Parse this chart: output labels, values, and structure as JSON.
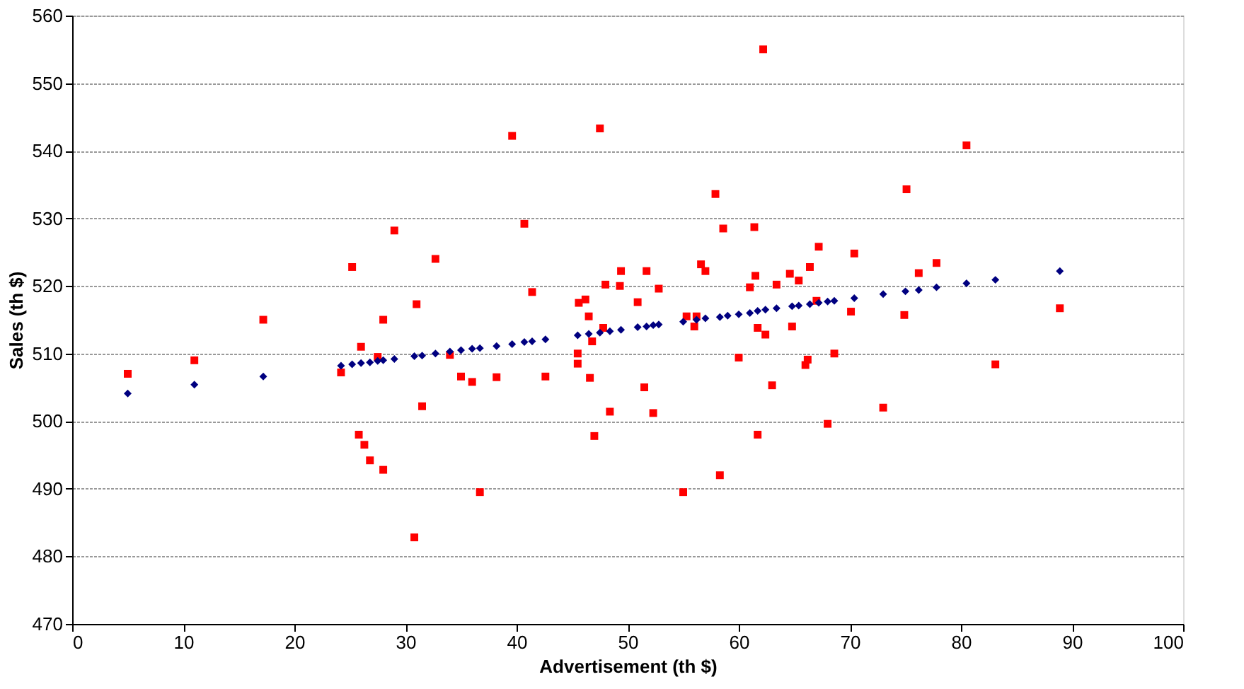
{
  "chart_data": {
    "type": "scatter",
    "xlabel": "Advertisement (th $)",
    "ylabel": "Sales (th $)",
    "xlim": [
      0,
      100
    ],
    "xticks": [
      0,
      10,
      20,
      30,
      40,
      50,
      60,
      70,
      80,
      90,
      100
    ],
    "ylim": [
      470,
      560
    ],
    "yticks": [
      470,
      480,
      490,
      500,
      510,
      520,
      530,
      540,
      550,
      560
    ],
    "grid": "y",
    "series": [
      {
        "color": "#000080",
        "marker": "diamond",
        "x": [
          5,
          11,
          17.2,
          24.2,
          25.2,
          26,
          26.8,
          27.5,
          28,
          29,
          30.8,
          31.5,
          32.7,
          34,
          35,
          36,
          36.7,
          38.2,
          39.6,
          40.7,
          41.4,
          42.6,
          45.5,
          46.5,
          47.5,
          48.4,
          49.4,
          50.9,
          51.7,
          52.3,
          52.8,
          55,
          56.2,
          57,
          58.3,
          59,
          60,
          61,
          61.7,
          62.4,
          63.4,
          64.8,
          65.4,
          66.4,
          67.2,
          68,
          68.6,
          70.4,
          73,
          75,
          76.2,
          77.8,
          80.5,
          83.1,
          88.9
        ],
        "values": [
          504.1,
          505.4,
          506.6,
          508.2,
          508.4,
          508.6,
          508.7,
          508.9,
          509,
          509.2,
          509.6,
          509.7,
          510,
          510.3,
          510.5,
          510.7,
          510.8,
          511.1,
          511.4,
          511.7,
          511.8,
          512.1,
          512.7,
          512.9,
          513.1,
          513.3,
          513.5,
          513.9,
          514,
          514.2,
          514.3,
          514.7,
          515,
          515.2,
          515.4,
          515.6,
          515.8,
          516,
          516.3,
          516.5,
          516.7,
          517,
          517.1,
          517.3,
          517.5,
          517.7,
          517.8,
          518.2,
          518.8,
          519.2,
          519.4,
          519.8,
          520.4,
          520.9,
          522.2
        ]
      },
      {
        "color": "#ff0000",
        "marker": "square",
        "x": [
          5,
          11,
          17.2,
          24.2,
          25.2,
          25.8,
          26,
          26.3,
          26.8,
          27.5,
          28,
          28,
          29,
          30.8,
          31,
          31.5,
          32.7,
          34,
          35,
          36,
          36.7,
          38.2,
          39.6,
          40.7,
          41.4,
          42.6,
          45.5,
          45.5,
          45.6,
          46.2,
          46.5,
          46.6,
          46.8,
          47,
          47.5,
          47.8,
          48,
          48.4,
          49.3,
          49.4,
          50.9,
          51.5,
          51.7,
          52.3,
          52.8,
          55,
          55.3,
          56,
          56.2,
          56.6,
          57,
          57.9,
          58.3,
          58.6,
          60,
          61,
          61.4,
          61.5,
          61.7,
          61.7,
          62.2,
          62.4,
          63,
          63.4,
          64.6,
          64.8,
          65.4,
          66,
          66.2,
          66.4,
          67.2,
          67,
          68,
          68.6,
          70.1,
          70.4,
          73,
          74.9,
          75.1,
          76.2,
          77.8,
          80.5,
          83.1,
          88.9
        ],
        "values": [
          507,
          509,
          515,
          507.2,
          522.8,
          498,
          511,
          496.5,
          494.2,
          509.5,
          515,
          492.8,
          528.2,
          482.8,
          517.3,
          502.2,
          524,
          509.8,
          506.6,
          505.8,
          489.5,
          506.5,
          542.2,
          529.2,
          519.1,
          506.6,
          510,
          508.5,
          517.5,
          518,
          515.5,
          506.4,
          511.8,
          497.8,
          543.3,
          513.8,
          520.2,
          501.4,
          520,
          522.2,
          517.6,
          505,
          522.2,
          501.2,
          519.6,
          489.5,
          515.5,
          514,
          515.5,
          523.2,
          522.2,
          533.6,
          492,
          528.5,
          509.4,
          519.8,
          528.7,
          521.5,
          498,
          513.8,
          555,
          512.8,
          505.3,
          520.2,
          521.8,
          514,
          520.8,
          508.3,
          509.1,
          522.8,
          525.8,
          517.8,
          499.6,
          510,
          516.2,
          524.8,
          502,
          515.7,
          534.3,
          521.9,
          523.4,
          540.8,
          508.4,
          516.7
        ]
      }
    ]
  }
}
